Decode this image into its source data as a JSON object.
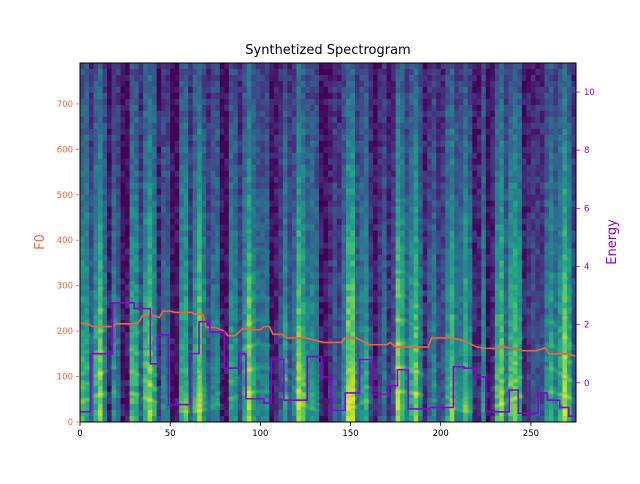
{
  "chart_data": {
    "type": "line",
    "title": "Synthetized Spectrogram",
    "xlabel": "",
    "xlim": [
      0,
      275
    ],
    "x_ticks": [
      0,
      50,
      100,
      150,
      200,
      250
    ],
    "background": "spectrogram heatmap (viridis colormap)",
    "grid": false,
    "legend": "none",
    "left_axis": {
      "label": "F0",
      "color": "#f0643c",
      "ylim": [
        0,
        790
      ],
      "ticks": [
        0,
        100,
        200,
        300,
        400,
        500,
        600,
        700
      ]
    },
    "right_axis": {
      "label": "Energy",
      "color": "#9400d3",
      "ylim": [
        -1.35,
        11.0
      ],
      "ticks": [
        0,
        2,
        4,
        6,
        8,
        10
      ]
    },
    "series": [
      {
        "axis": "left",
        "color": "#f0643c",
        "step": false,
        "points": [
          [
            0,
            217
          ],
          [
            4,
            217
          ],
          [
            7,
            210
          ],
          [
            12,
            210
          ],
          [
            18,
            210
          ],
          [
            20,
            216
          ],
          [
            28,
            216
          ],
          [
            32,
            217
          ],
          [
            35,
            235
          ],
          [
            40,
            235
          ],
          [
            44,
            230
          ],
          [
            46,
            244
          ],
          [
            50,
            244
          ],
          [
            53,
            241
          ],
          [
            62,
            241
          ],
          [
            64,
            237
          ],
          [
            68,
            237
          ],
          [
            70,
            208
          ],
          [
            75,
            208
          ],
          [
            80,
            200
          ],
          [
            82,
            190
          ],
          [
            86,
            190
          ],
          [
            90,
            205
          ],
          [
            95,
            203
          ],
          [
            100,
            203
          ],
          [
            102,
            210
          ],
          [
            105,
            210
          ],
          [
            107,
            193
          ],
          [
            112,
            193
          ],
          [
            115,
            185
          ],
          [
            125,
            185
          ],
          [
            130,
            180
          ],
          [
            135,
            175
          ],
          [
            140,
            175
          ],
          [
            145,
            175
          ],
          [
            147,
            185
          ],
          [
            153,
            185
          ],
          [
            158,
            175
          ],
          [
            160,
            170
          ],
          [
            163,
            170
          ],
          [
            170,
            170
          ],
          [
            172,
            175
          ],
          [
            175,
            165
          ],
          [
            180,
            165
          ],
          [
            185,
            165
          ],
          [
            193,
            165
          ],
          [
            195,
            185
          ],
          [
            205,
            185
          ],
          [
            210,
            182
          ],
          [
            215,
            175
          ],
          [
            220,
            165
          ],
          [
            225,
            162
          ],
          [
            230,
            162
          ],
          [
            235,
            165
          ],
          [
            240,
            162
          ],
          [
            243,
            160
          ],
          [
            245,
            157
          ],
          [
            253,
            157
          ],
          [
            258,
            163
          ],
          [
            260,
            150
          ],
          [
            265,
            150
          ],
          [
            270,
            150
          ],
          [
            275,
            145
          ]
        ]
      },
      {
        "axis": "right",
        "color": "#9400d3",
        "step": true,
        "points": [
          [
            0,
            -1.0
          ],
          [
            6,
            1.0
          ],
          [
            18,
            2.75
          ],
          [
            30,
            2.55
          ],
          [
            39,
            0.65
          ],
          [
            43,
            1.65
          ],
          [
            49,
            -0.75
          ],
          [
            61,
            1.0
          ],
          [
            66,
            2.1
          ],
          [
            72,
            1.75
          ],
          [
            80,
            0.5
          ],
          [
            88,
            1.0
          ],
          [
            92,
            -0.55
          ],
          [
            102,
            -0.7
          ],
          [
            106,
            0.8
          ],
          [
            113,
            -0.6
          ],
          [
            126,
            0.9
          ],
          [
            134,
            0.2
          ],
          [
            139,
            -0.95
          ],
          [
            147,
            -0.35
          ],
          [
            155,
            0.8
          ],
          [
            162,
            -0.4
          ],
          [
            171,
            -0.1
          ],
          [
            176,
            0.45
          ],
          [
            182,
            -0.9
          ],
          [
            194,
            -0.85
          ],
          [
            207,
            0.55
          ],
          [
            213,
            0.5
          ],
          [
            219,
            0.2
          ],
          [
            225,
            -1.0
          ],
          [
            238,
            -0.25
          ],
          [
            243,
            -1.05
          ],
          [
            254,
            -0.35
          ],
          [
            259,
            -0.6
          ],
          [
            266,
            -0.85
          ],
          [
            271,
            -1.15
          ],
          [
            275,
            -1.15
          ]
        ]
      }
    ]
  }
}
